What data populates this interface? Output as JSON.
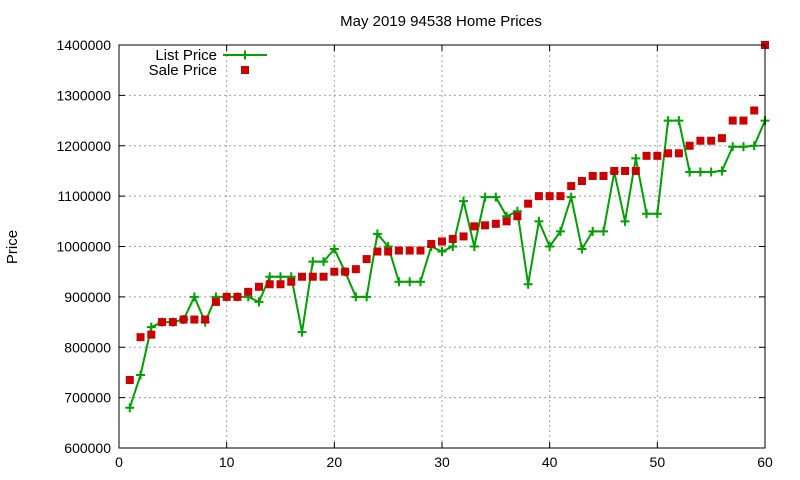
{
  "chart_data": {
    "type": "line",
    "title": "May 2019 94538 Home Prices",
    "xlabel": "",
    "ylabel": "Price",
    "xlim": [
      0,
      60
    ],
    "ylim": [
      600000,
      1400000
    ],
    "xticks": [
      0,
      10,
      20,
      30,
      40,
      50,
      60
    ],
    "yticks": [
      600000,
      700000,
      800000,
      900000,
      1000000,
      1100000,
      1200000,
      1300000,
      1400000
    ],
    "grid": true,
    "legend_position": "top-left",
    "series": [
      {
        "name": "List Price",
        "style": "line-plus",
        "color": "#00a000",
        "x": [
          1,
          2,
          3,
          4,
          5,
          6,
          7,
          8,
          9,
          10,
          11,
          12,
          13,
          14,
          15,
          16,
          17,
          18,
          19,
          20,
          21,
          22,
          23,
          24,
          25,
          26,
          27,
          28,
          29,
          30,
          31,
          32,
          33,
          34,
          35,
          36,
          37,
          38,
          39,
          40,
          41,
          42,
          43,
          44,
          45,
          46,
          47,
          48,
          49,
          50,
          51,
          52,
          53,
          54,
          55,
          56,
          57,
          58,
          59,
          60
        ],
        "y": [
          680000,
          745000,
          840000,
          850000,
          850000,
          855000,
          900000,
          850000,
          900000,
          900000,
          900000,
          900000,
          890000,
          940000,
          940000,
          940000,
          830000,
          970000,
          970000,
          995000,
          950000,
          900000,
          900000,
          1025000,
          1000000,
          930000,
          930000,
          930000,
          1000000,
          990000,
          1000000,
          1090000,
          1000000,
          1098000,
          1098000,
          1060000,
          1070000,
          925000,
          1050000,
          1000000,
          1030000,
          1098000,
          995000,
          1030000,
          1030000,
          1148000,
          1050000,
          1175000,
          1065000,
          1065000,
          1250000,
          1250000,
          1148000,
          1148000,
          1148000,
          1150000,
          1198000,
          1198000,
          1200000,
          1250000
        ]
      },
      {
        "name": "Sale Price",
        "style": "square",
        "color": "#cc0000",
        "x": [
          1,
          2,
          3,
          4,
          5,
          6,
          7,
          8,
          9,
          10,
          11,
          12,
          13,
          14,
          15,
          16,
          17,
          18,
          19,
          20,
          21,
          22,
          23,
          24,
          25,
          26,
          27,
          28,
          29,
          30,
          31,
          32,
          33,
          34,
          35,
          36,
          37,
          38,
          39,
          40,
          41,
          42,
          43,
          44,
          45,
          46,
          47,
          48,
          49,
          50,
          51,
          52,
          53,
          54,
          55,
          56,
          57,
          58,
          59,
          60
        ],
        "y": [
          735000,
          820000,
          825000,
          850000,
          850000,
          855000,
          855000,
          855000,
          890000,
          900000,
          900000,
          910000,
          920000,
          925000,
          925000,
          930000,
          940000,
          940000,
          940000,
          950000,
          950000,
          955000,
          975000,
          990000,
          990000,
          992000,
          992000,
          992000,
          1005000,
          1010000,
          1015000,
          1020000,
          1040000,
          1042000,
          1045000,
          1050000,
          1060000,
          1085000,
          1100000,
          1100000,
          1100000,
          1120000,
          1130000,
          1140000,
          1140000,
          1150000,
          1150000,
          1150000,
          1180000,
          1180000,
          1185000,
          1185000,
          1200000,
          1210000,
          1210000,
          1215000,
          1250000,
          1250000,
          1270000,
          1400000
        ]
      }
    ]
  }
}
